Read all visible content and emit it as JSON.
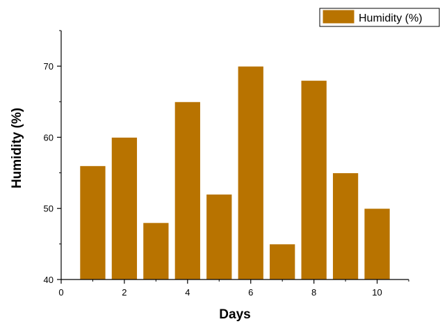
{
  "chart_data": {
    "type": "bar",
    "x": [
      1,
      2,
      3,
      4,
      5,
      6,
      7,
      8,
      9,
      10
    ],
    "values": [
      56,
      60,
      48,
      65,
      52,
      70,
      45,
      68,
      55,
      50
    ],
    "series": [
      {
        "name": "Humidity (%)",
        "values": [
          56,
          60,
          48,
          65,
          52,
          70,
          45,
          68,
          55,
          50
        ]
      }
    ],
    "title": "",
    "xlabel": "Days",
    "ylabel": "Humidity (%)",
    "xlim": [
      0,
      11
    ],
    "ylim": [
      40,
      75
    ],
    "xticks": [
      0,
      2,
      4,
      6,
      8,
      10
    ],
    "yticks": [
      40,
      50,
      60,
      70
    ],
    "grid": false,
    "legend_position": "top-right",
    "bar_color": "#B87300",
    "bar_edge_color": "#ffffff"
  }
}
